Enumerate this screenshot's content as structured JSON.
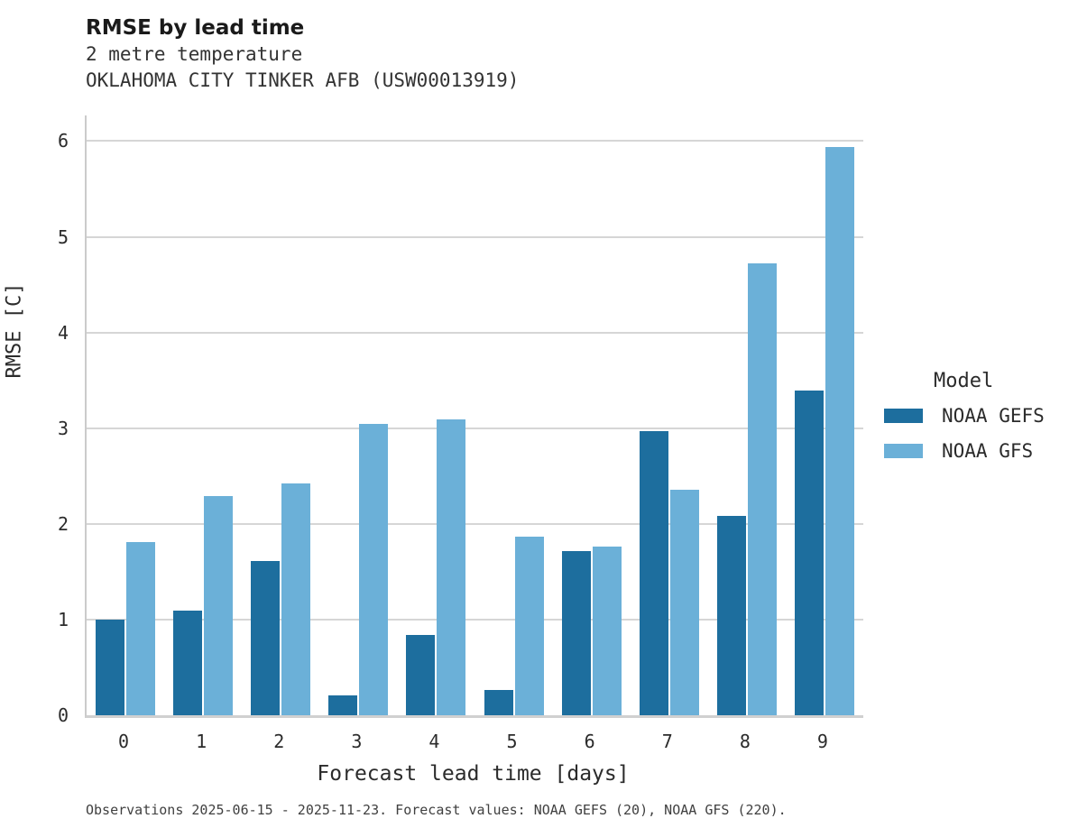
{
  "header": {
    "title": "RMSE by lead time",
    "subtitle_line1": "2 metre temperature",
    "subtitle_line2": "OKLAHOMA CITY TINKER AFB (USW00013919)"
  },
  "footer": {
    "note": "Observations 2025-06-15 - 2025-11-23. Forecast values: NOAA GEFS (20), NOAA GFS (220)."
  },
  "legend": {
    "title": "Model",
    "items": [
      {
        "label": "NOAA GEFS",
        "color": "#1d6e9e"
      },
      {
        "label": "NOAA GFS",
        "color": "#6bb0d8"
      }
    ]
  },
  "colors": {
    "gefs": "#1d6e9e",
    "gfs": "#6bb0d8",
    "gridline": "#d6d6d6",
    "axis": "#cbcbcb"
  },
  "chart_data": {
    "type": "bar",
    "title": "RMSE by lead time",
    "subtitle": "2 metre temperature — OKLAHOMA CITY TINKER AFB (USW00013919)",
    "xlabel": "Forecast lead time [days]",
    "ylabel": "RMSE [C]",
    "categories": [
      "0",
      "1",
      "2",
      "3",
      "4",
      "5",
      "6",
      "7",
      "8",
      "9"
    ],
    "series": [
      {
        "name": "NOAA GEFS",
        "color": "#1d6e9e",
        "values": [
          1.0,
          1.09,
          1.61,
          0.21,
          0.84,
          0.26,
          1.72,
          2.97,
          2.08,
          3.39
        ]
      },
      {
        "name": "NOAA GFS",
        "color": "#6bb0d8",
        "values": [
          1.81,
          2.29,
          2.42,
          3.04,
          3.09,
          1.87,
          1.76,
          2.36,
          4.72,
          5.94
        ]
      }
    ],
    "ylim": [
      0,
      6.27
    ],
    "yticks": [
      0,
      1,
      2,
      3,
      4,
      5,
      6
    ],
    "grid": true,
    "legend_title": "Model",
    "legend_position": "right"
  }
}
